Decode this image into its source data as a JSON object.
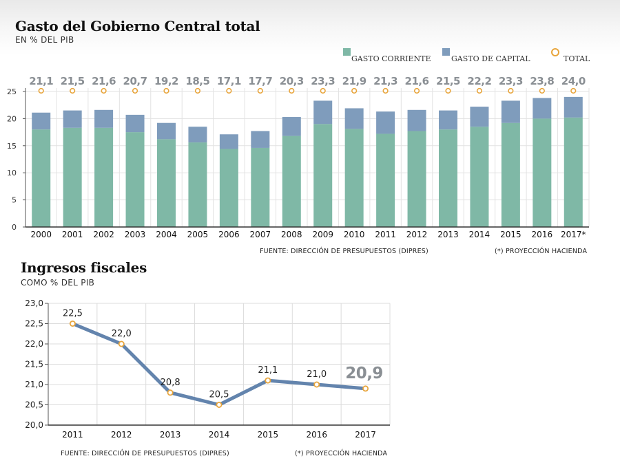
{
  "top": {
    "title": "Gasto del Gobierno Central total",
    "subtitle": "EN % DEL PIB",
    "legend": [
      {
        "label": "GASTO CORRIENTE",
        "color": "#7fb8a6"
      },
      {
        "label": "GASTO DE CAPITAL",
        "color": "#7f9cbc"
      },
      {
        "label": "TOTAL",
        "color": "#e8a53c"
      }
    ],
    "source": "FUENTE: DIRECCIÓN DE PRESUPUESTOS (DIPRES)",
    "footnote": "(*) PROYECCIÓN HACIENDA"
  },
  "bottom": {
    "title": "Ingresos fiscales",
    "subtitle": "COMO % DEL PIB",
    "source": "FUENTE: DIRECCIÓN DE PRESUPUESTOS (DIPRES)",
    "footnote": "(*) PROYECCIÓN HACIENDA"
  },
  "chart_data": [
    {
      "type": "bar",
      "stacked": true,
      "title": "Gasto del Gobierno Central total",
      "subtitle": "EN % DEL PIB",
      "categories": [
        "2000",
        "2001",
        "2002",
        "2003",
        "2004",
        "2005",
        "2006",
        "2007",
        "2008",
        "2009",
        "2010",
        "2011",
        "2012",
        "2013",
        "2014",
        "2015",
        "2016",
        "2017*"
      ],
      "series": [
        {
          "name": "GASTO CORRIENTE",
          "color": "#7fb8a6",
          "values": [
            18.0,
            18.3,
            18.3,
            17.5,
            16.2,
            15.6,
            14.4,
            14.6,
            16.8,
            19.0,
            18.1,
            17.2,
            17.7,
            18.0,
            18.5,
            19.2,
            20.0,
            20.2
          ]
        },
        {
          "name": "GASTO DE CAPITAL",
          "color": "#7f9cbc",
          "values": [
            3.1,
            3.2,
            3.3,
            3.2,
            3.0,
            2.9,
            2.7,
            3.1,
            3.5,
            4.3,
            3.8,
            4.1,
            3.9,
            3.5,
            3.7,
            4.1,
            3.8,
            3.8
          ]
        }
      ],
      "totals": {
        "name": "TOTAL",
        "labels": [
          "21,1",
          "21,5",
          "21,6",
          "20,7",
          "19,2",
          "18,5",
          "17,1",
          "17,7",
          "20,3",
          "23,3",
          "21,9",
          "21,3",
          "21,6",
          "21,5",
          "22,2",
          "23,3",
          "23,8",
          "24,0"
        ]
      },
      "yticks": [
        "0",
        "5",
        "10",
        "15",
        "20",
        "25"
      ],
      "ylim": [
        0,
        25
      ],
      "grid": true
    },
    {
      "type": "line",
      "title": "Ingresos fiscales",
      "subtitle": "COMO % DEL PIB",
      "x": [
        "2011",
        "2012",
        "2013",
        "2014",
        "2015",
        "2016",
        "2017"
      ],
      "values": [
        22.5,
        22.0,
        20.8,
        20.5,
        21.1,
        21.0,
        20.9
      ],
      "labels": [
        "22,5",
        "22,0",
        "20,8",
        "20,5",
        "21,1",
        "21,0",
        "20,9"
      ],
      "yticks": [
        "20,0",
        "20,5",
        "21,0",
        "21,5",
        "22,0",
        "22,5",
        "23,0"
      ],
      "ylim": [
        20.0,
        23.0
      ],
      "line_color": "#6384ad",
      "marker_color": "#e8a53c",
      "grid": true
    }
  ]
}
